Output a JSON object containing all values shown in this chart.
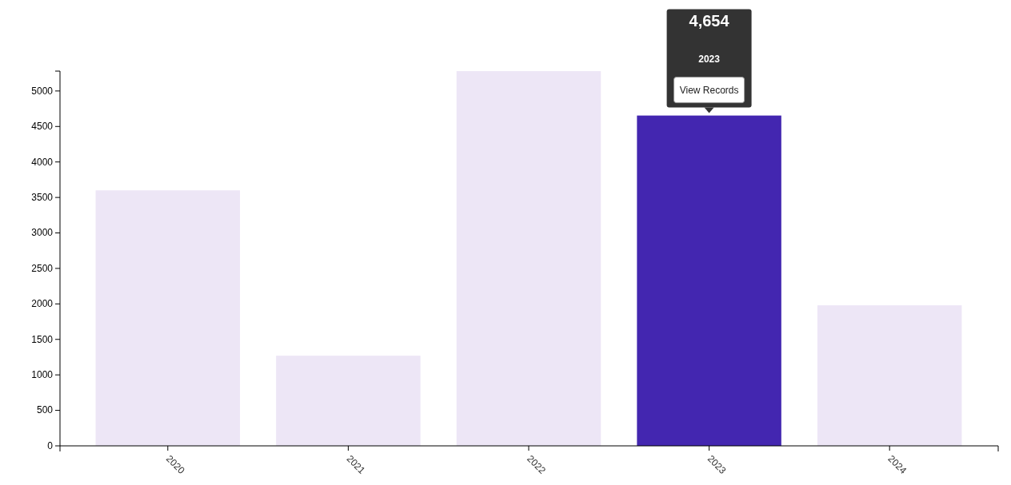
{
  "chart_data": {
    "type": "bar",
    "categories": [
      "2020",
      "2021",
      "2022",
      "2023",
      "2024"
    ],
    "values": [
      3600,
      1270,
      5280,
      4654,
      1980
    ],
    "colors": [
      "#ede6f6",
      "#ede6f6",
      "#ede6f6",
      "#4326b0",
      "#ede6f6"
    ],
    "ylim": [
      0,
      5280
    ],
    "yticks": [
      0,
      500,
      1000,
      1500,
      2000,
      2500,
      3000,
      3500,
      4000,
      4500,
      5000
    ],
    "grid": false,
    "annotations": [
      "4,654",
      "2023",
      "View Records"
    ]
  }
}
